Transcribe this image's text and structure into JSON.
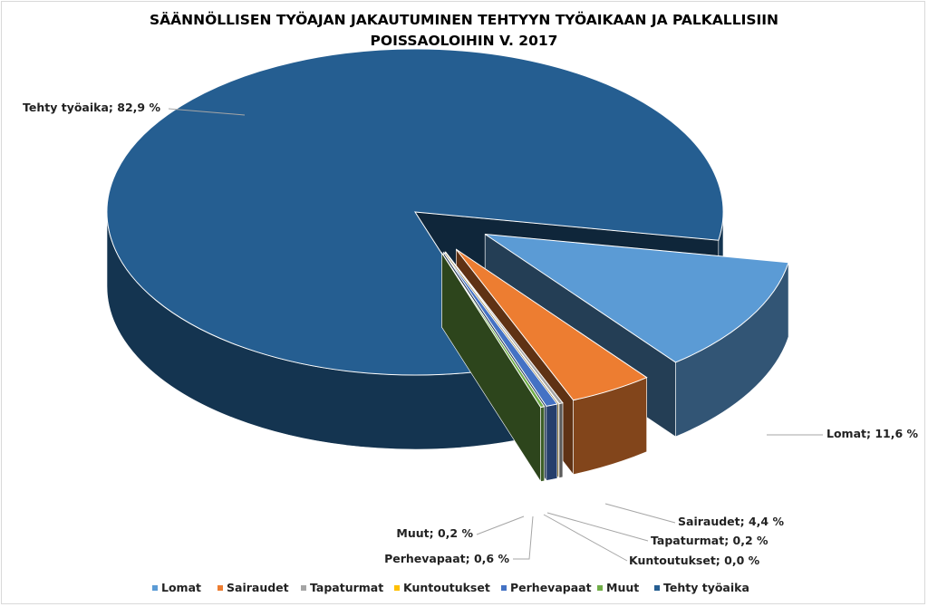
{
  "chart_data": {
    "type": "pie",
    "title_line1": "SÄÄNNÖLLISEN TYÖAJAN JAKAUTUMINEN TEHTYYN TYÖAIKAAN JA PALKALLISIIN",
    "title_line2": "POISSAOLOIHIN V. 2017",
    "slices": [
      {
        "name": "Lomat",
        "value": 11.6,
        "label": "Lomat; 11,6 %",
        "color": "#5b9bd5"
      },
      {
        "name": "Sairaudet",
        "value": 4.4,
        "label": "Sairaudet; 4,4 %",
        "color": "#ed7d31"
      },
      {
        "name": "Tapaturmat",
        "value": 0.2,
        "label": "Tapaturmat; 0,2 %",
        "color": "#a5a5a5"
      },
      {
        "name": "Kuntoutukset",
        "value": 0.0,
        "label": "Kuntoutukset; 0,0 %",
        "color": "#ffc000"
      },
      {
        "name": "Perhevapaat",
        "value": 0.6,
        "label": "Perhevapaat; 0,6 %",
        "color": "#4472c4"
      },
      {
        "name": "Muut",
        "value": 0.2,
        "label": "Muut; 0,2 %",
        "color": "#70ad47"
      },
      {
        "name": "Tehty työaika",
        "value": 82.9,
        "label": "Tehty työaika; 82,9 %",
        "color": "#255e91"
      }
    ],
    "legend_position": "bottom"
  }
}
